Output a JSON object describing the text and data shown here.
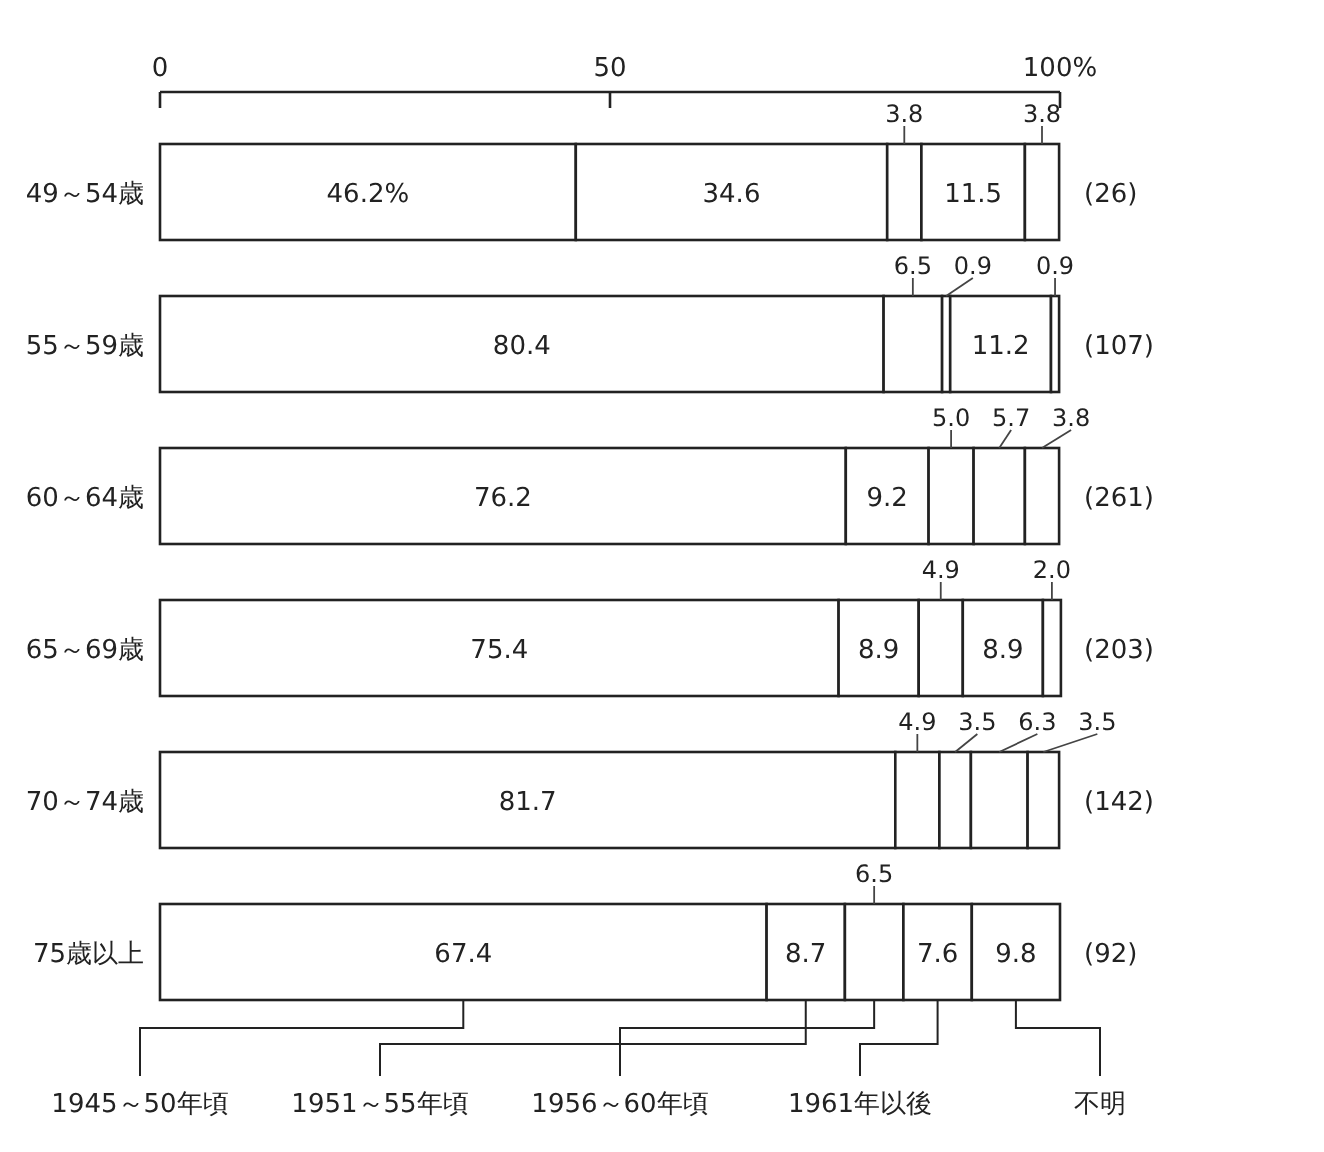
{
  "chart_data": {
    "type": "bar",
    "orientation": "horizontal",
    "stacked": true,
    "categories": [
      "49～54歳",
      "55～59歳",
      "60～64歳",
      "65～69歳",
      "70～74歳",
      "75歳以上"
    ],
    "series": [
      {
        "name": "1945～50年頃",
        "color": "#ffffff",
        "values": [
          46.2,
          80.4,
          76.2,
          75.4,
          81.7,
          67.4
        ],
        "value_labels": [
          "46.2%",
          "80.4",
          "76.2",
          "75.4",
          "81.7",
          "67.4"
        ]
      },
      {
        "name": "1951～55年頃",
        "color": "#ffffff",
        "values": [
          34.6,
          6.5,
          9.2,
          8.9,
          4.9,
          8.7
        ],
        "value_labels": [
          "34.6",
          "6.5",
          "9.2",
          "8.9",
          "4.9",
          "8.7"
        ]
      },
      {
        "name": "1956～60年頃",
        "color": "#ffffff",
        "values": [
          3.8,
          0.9,
          5.0,
          4.9,
          3.5,
          6.5
        ],
        "value_labels": [
          "3.8",
          "0.9",
          "5.0",
          "4.9",
          "3.5",
          "6.5"
        ]
      },
      {
        "name": "1961年以後",
        "color": "#ffffff",
        "values": [
          11.5,
          11.2,
          5.7,
          8.9,
          6.3,
          7.6
        ],
        "value_labels": [
          "11.5",
          "11.2",
          "5.7",
          "8.9",
          "6.3",
          "7.6"
        ]
      },
      {
        "name": "不明",
        "color": "#ffffff",
        "values": [
          3.8,
          0.9,
          3.8,
          2.0,
          3.5,
          9.8
        ],
        "value_labels": [
          "3.8",
          "0.9",
          "3.8",
          "2.0",
          "3.5",
          "9.8"
        ]
      }
    ],
    "xlim": [
      0,
      100
    ],
    "xticks": [
      0,
      50,
      {
        "value": 100,
        "label": "100%"
      }
    ],
    "legend": "bottom",
    "grid": false,
    "annotations": [
      "(26)",
      "(107)",
      "(261)",
      "(203)",
      "(142)",
      "(92)"
    ]
  }
}
